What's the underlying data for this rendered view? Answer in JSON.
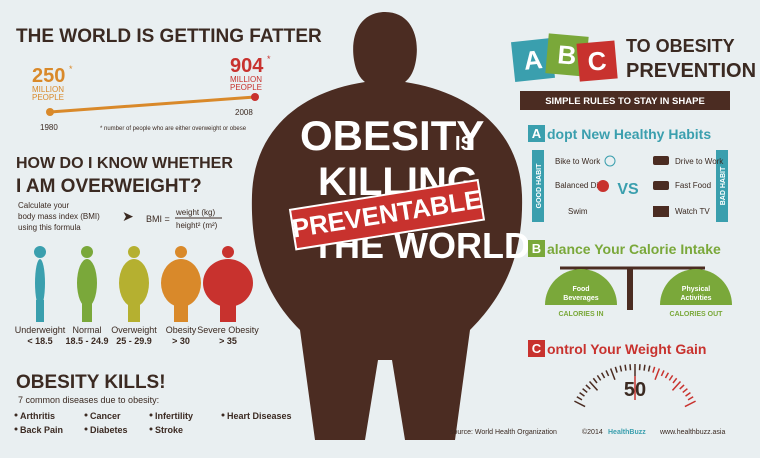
{
  "fatter": {
    "title": "THE WORLD IS GETTING FATTER",
    "start": {
      "value": "250",
      "mark": "*",
      "unit_line1": "MILLION",
      "unit_line2": "PEOPLE",
      "year": "1980"
    },
    "end": {
      "value": "904",
      "mark": "*",
      "unit_line1": "MILLION",
      "unit_line2": "PEOPLE",
      "year": "2008"
    },
    "footnote": "* number of people who are either overweight or obese"
  },
  "bmi": {
    "title_line1": "HOW DO I KNOW WHETHER",
    "title_line2": "I AM OVERWEIGHT?",
    "intro": [
      "Calculate your",
      "body mass index (BMI)",
      "using this formula"
    ],
    "formula_lhs": "BMI =",
    "numerator": "weight (kg)",
    "denominator": "height² (m²)",
    "categories": [
      {
        "label": "Underweight",
        "range": "< 18.5"
      },
      {
        "label": "Normal",
        "range": "18.5 - 24.9"
      },
      {
        "label": "Overweight",
        "range": "25 - 29.9"
      },
      {
        "label": "Obesity",
        "range": "> 30"
      },
      {
        "label": "Severe Obesity",
        "range": "> 35"
      }
    ]
  },
  "kills": {
    "title": "OBESITY KILLS!",
    "subtitle": "7 common diseases due to obesity:",
    "diseases": [
      "Arthritis",
      "Cancer",
      "Infertility",
      "Heart Diseases",
      "Back Pain",
      "Diabetes",
      "Stroke"
    ]
  },
  "center": {
    "line1": "OBESITY",
    "is": "IS",
    "line2": "KILLING",
    "line3": "THE WORLD",
    "stamp": "PREVENTABLE"
  },
  "abc": {
    "letters": [
      "A",
      "B",
      "C"
    ],
    "title_line1": "TO OBESITY",
    "title_line2": "PREVENTION",
    "banner": "SIMPLE RULES TO STAY IN SHAPE",
    "a": {
      "letter": "A",
      "title": "dopt New Healthy Habits",
      "good_label": "GOOD HABIT",
      "bad_label": "BAD HABIT",
      "good": [
        "Bike to Work",
        "Balanced Diet",
        "Swim"
      ],
      "vs": "VS",
      "bad": [
        "Drive to Work",
        "Fast Food",
        "Watch TV"
      ]
    },
    "b": {
      "letter": "B",
      "title": "alance Your Calorie Intake",
      "left_line1": "Food",
      "left_line2": "Beverages",
      "left_caption": "CALORIES IN",
      "right_line1": "Physical",
      "right_line2": "Activities",
      "right_caption": "CALORIES OUT"
    },
    "c": {
      "letter": "C",
      "title": "ontrol Your Weight Gain",
      "scale": "50"
    }
  },
  "footer": {
    "source": "source: World Health Organization",
    "copyright": "©2014",
    "brand": "HealthBuzz",
    "url": "www.healthbuzz.asia"
  }
}
